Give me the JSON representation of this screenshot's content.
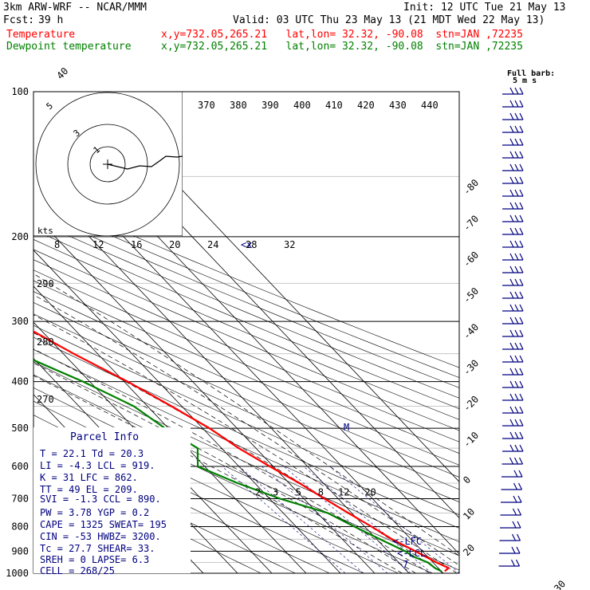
{
  "header": {
    "model": "3km ARW-WRF -- NCAR/MMM",
    "init": "Init: 12 UTC Tue 21 May 13",
    "fcst_label": "Fcst:",
    "fcst_value": "39 h",
    "valid": "Valid: 03 UTC Thu 23 May 13 (21 MDT Wed 22 May 13)",
    "temp_name": "Temperature",
    "temp_loc": "x,y=732.05,265.21   lat,lon= 32.32, -90.08  stn=JAN ,72235",
    "dew_name": "Dewpoint temperature",
    "dew_loc": "x,y=732.05,265.21   lat,lon= 32.32, -90.08  stn=JAN ,72235"
  },
  "barb_label": {
    "line1": "Full barb:",
    "line2": "5 m s"
  },
  "hodograph": {
    "units": "kts",
    "ring_labels": [
      "5",
      "3",
      "1"
    ]
  },
  "parcel_info": {
    "title": "Parcel Info",
    "rows": [
      "T  =   22.1  Td =  20.3",
      "LI =   -4.3  LCL =  919.",
      "K  =     31  LFC =  862.",
      "TT =     49  EL  =  209.",
      "SVI =  -1.3  CCL =  890.",
      "PW =   3.78  YGP =   0.2",
      "CAPE =  1325  SWEAT=  195",
      "CIN =   -53  HWBZ= 3200.",
      "Tc =   27.7  SHEAR=  33.",
      "SREH =    0  LAPSE=  6.3",
      "CELL = 268/25"
    ]
  },
  "level_labels": {
    "lfc": "<-LFC",
    "lcl": "<-LCL",
    "mark7": "7",
    "mark_m": "M",
    "x21": "<x"
  },
  "colors": {
    "temperature": "#ff0000",
    "dewpoint": "#008000",
    "navy": "#000080",
    "mix": "#000080"
  },
  "chart_data": {
    "type": "line",
    "title": "",
    "y_axis": {
      "label": "",
      "scale": "log",
      "range": [
        1000,
        100
      ],
      "ticks": [
        100,
        200,
        300,
        400,
        500,
        600,
        700,
        800,
        900,
        1000
      ]
    },
    "isotherm_labels": [
      -80,
      -70,
      -60,
      -50,
      -40,
      -30,
      -20,
      -10,
      0,
      10,
      20,
      30,
      40
    ],
    "dry_adiabat_labels": [
      370,
      380,
      390,
      400,
      410,
      420,
      430,
      440
    ],
    "theta_left_labels": [
      290,
      280,
      270
    ],
    "mixing_ratio_upper": [
      8,
      12,
      16,
      20,
      24,
      28,
      32
    ],
    "mixing_ratio_lower": [
      2,
      3,
      5,
      8,
      12,
      20
    ],
    "series": [
      {
        "name": "Temperature",
        "color": "#ff0000",
        "points": [
          [
            990,
            21
          ],
          [
            975,
            23
          ],
          [
            950,
            21
          ],
          [
            925,
            19.5
          ],
          [
            900,
            18
          ],
          [
            850,
            14.5
          ],
          [
            800,
            12
          ],
          [
            750,
            9
          ],
          [
            700,
            6
          ],
          [
            650,
            3
          ],
          [
            600,
            -1
          ],
          [
            550,
            -5
          ],
          [
            500,
            -8
          ],
          [
            450,
            -13
          ],
          [
            400,
            -19
          ],
          [
            350,
            -27
          ],
          [
            300,
            -35
          ],
          [
            250,
            -45
          ],
          [
            200,
            -55
          ],
          [
            175,
            -58
          ],
          [
            150,
            -60
          ],
          [
            125,
            -63
          ],
          [
            110,
            -64
          ],
          [
            100,
            -64
          ]
        ]
      },
      {
        "name": "Dewpoint temperature",
        "color": "#008000",
        "points": [
          [
            990,
            20
          ],
          [
            975,
            19
          ],
          [
            950,
            18.5
          ],
          [
            925,
            16
          ],
          [
            900,
            15
          ],
          [
            850,
            11
          ],
          [
            800,
            7
          ],
          [
            750,
            3
          ],
          [
            700,
            -7
          ],
          [
            650,
            -15
          ],
          [
            600,
            -22
          ],
          [
            550,
            -17
          ],
          [
            500,
            -21
          ],
          [
            450,
            -24
          ],
          [
            400,
            -32
          ],
          [
            350,
            -43
          ],
          [
            300,
            -57
          ],
          [
            275,
            -60
          ],
          [
            250,
            -56
          ],
          [
            200,
            -52
          ],
          [
            175,
            -49
          ],
          [
            150,
            -46
          ],
          [
            125,
            -42
          ],
          [
            110,
            -40
          ],
          [
            100,
            -39
          ]
        ]
      }
    ]
  }
}
